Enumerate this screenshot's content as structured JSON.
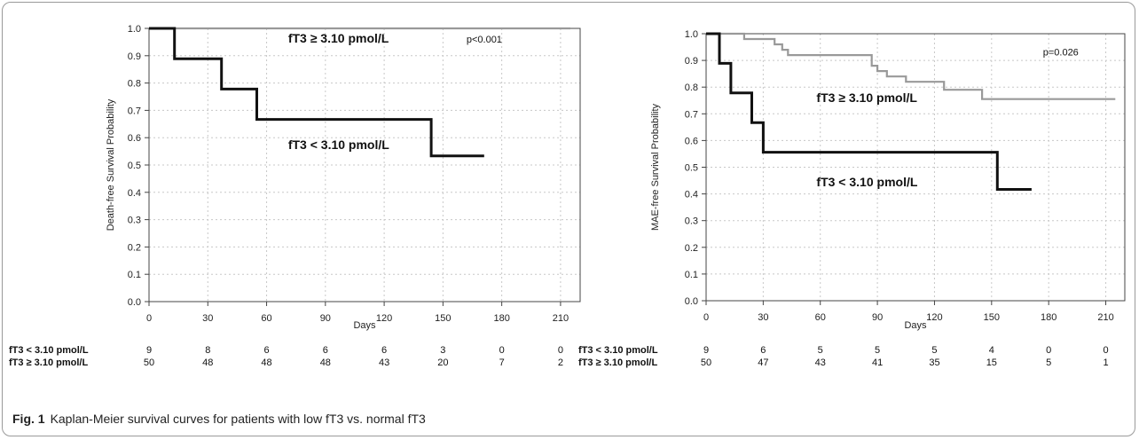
{
  "caption": {
    "label": "Fig. 1",
    "text": "Kaplan-Meier survival curves for patients with low fT3 vs. normal fT3"
  },
  "colors": {
    "low_fT3": "#111111",
    "normal_fT3": "#999999",
    "grid": "#c8c8c8"
  },
  "chart_data": [
    {
      "type": "line",
      "step": true,
      "xlabel": "Days",
      "ylabel": "Death-free Survival Probability",
      "xlim": [
        0,
        220
      ],
      "ylim": [
        0,
        1
      ],
      "xticks": [
        0,
        30,
        60,
        90,
        120,
        150,
        180,
        210
      ],
      "yticks": [
        0,
        0.1,
        0.2,
        0.3,
        0.4,
        0.5,
        0.6,
        0.7,
        0.8,
        0.9,
        1.0
      ],
      "grid": true,
      "annotations": [
        {
          "text": "p<0.001",
          "x": 162,
          "y": 0.965,
          "bold": false
        },
        {
          "text": "fT3 ≥ 3.10 pmol/L",
          "x": 71,
          "y": 0.965,
          "bold": true
        },
        {
          "text": "fT3 < 3.10 pmol/L",
          "x": 71,
          "y": 0.575,
          "bold": true
        }
      ],
      "series": [
        {
          "key": "normal",
          "name": "fT3 ≥ 3.10 pmol/L",
          "x": [
            0,
            215
          ],
          "y": [
            1.0,
            1.0
          ]
        },
        {
          "key": "low",
          "name": "fT3 < 3.10 pmol/L",
          "x": [
            0,
            13,
            13,
            37,
            37,
            55,
            55,
            144,
            144,
            171
          ],
          "y": [
            1.0,
            1.0,
            0.889,
            0.889,
            0.778,
            0.778,
            0.667,
            0.667,
            0.533,
            0.533
          ]
        }
      ],
      "risk_table": {
        "rows": [
          {
            "label": "fT3 < 3.10 pmol/L",
            "values": [
              9,
              8,
              6,
              6,
              6,
              3,
              0,
              0
            ]
          },
          {
            "label": "fT3 ≥ 3.10 pmol/L",
            "values": [
              50,
              48,
              48,
              48,
              43,
              20,
              7,
              2
            ]
          }
        ]
      }
    },
    {
      "type": "line",
      "step": true,
      "xlabel": "Days",
      "ylabel": "MAE-free Survival Probability",
      "xlim": [
        0,
        220
      ],
      "ylim": [
        0,
        1
      ],
      "xticks": [
        0,
        30,
        60,
        90,
        120,
        150,
        180,
        210
      ],
      "yticks": [
        0,
        0.1,
        0.2,
        0.3,
        0.4,
        0.5,
        0.6,
        0.7,
        0.8,
        0.9,
        1.0
      ],
      "grid": true,
      "annotations": [
        {
          "text": "p=0.026",
          "x": 177,
          "y": 0.935,
          "bold": false
        },
        {
          "text": "fT3 ≥ 3.10 pmol/L",
          "x": 58,
          "y": 0.76,
          "bold": true
        },
        {
          "text": "fT3 < 3.10 pmol/L",
          "x": 58,
          "y": 0.445,
          "bold": true
        }
      ],
      "series": [
        {
          "key": "normal",
          "name": "fT3 ≥ 3.10 pmol/L",
          "x": [
            0,
            20,
            20,
            36,
            36,
            40,
            40,
            43,
            43,
            87,
            87,
            90,
            90,
            95,
            95,
            105,
            105,
            125,
            125,
            145,
            145,
            215
          ],
          "y": [
            1.0,
            1.0,
            0.98,
            0.98,
            0.96,
            0.96,
            0.94,
            0.94,
            0.92,
            0.92,
            0.88,
            0.88,
            0.86,
            0.86,
            0.84,
            0.84,
            0.82,
            0.82,
            0.79,
            0.79,
            0.755,
            0.755
          ]
        },
        {
          "key": "low",
          "name": "fT3 < 3.10 pmol/L",
          "x": [
            0,
            7,
            7,
            13,
            13,
            24,
            24,
            30,
            30,
            153,
            153,
            171
          ],
          "y": [
            1.0,
            1.0,
            0.889,
            0.889,
            0.778,
            0.778,
            0.667,
            0.667,
            0.556,
            0.556,
            0.417,
            0.417
          ]
        }
      ],
      "risk_table": {
        "rows": [
          {
            "label": "fT3 < 3.10 pmol/L",
            "values": [
              9,
              6,
              5,
              5,
              5,
              4,
              0,
              0
            ]
          },
          {
            "label": "fT3 ≥ 3.10 pmol/L",
            "values": [
              50,
              47,
              43,
              41,
              35,
              15,
              5,
              1
            ]
          }
        ]
      }
    }
  ]
}
